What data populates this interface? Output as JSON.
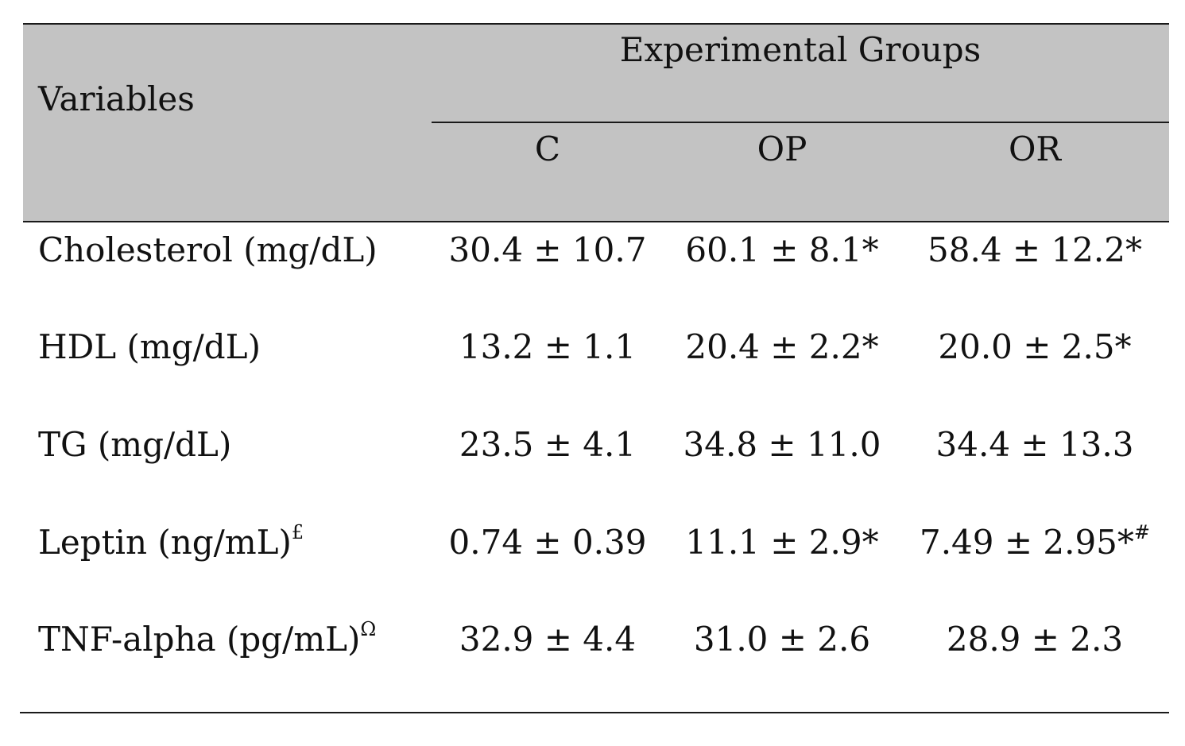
{
  "header": {
    "variables_label": "Variables",
    "group_title": "Experimental Groups",
    "columns": [
      "C",
      "OP",
      "OR"
    ]
  },
  "rows": [
    {
      "label": "Cholesterol (mg/dL)",
      "label_sup": "",
      "values": [
        {
          "text": "30.4 ± 10.7",
          "sup": ""
        },
        {
          "text": "60.1 ± 8.1*",
          "sup": ""
        },
        {
          "text": "58.4 ± 12.2*",
          "sup": ""
        }
      ]
    },
    {
      "label": "HDL (mg/dL)",
      "label_sup": "",
      "values": [
        {
          "text": "13.2 ± 1.1",
          "sup": ""
        },
        {
          "text": "20.4 ± 2.2*",
          "sup": ""
        },
        {
          "text": "20.0 ± 2.5*",
          "sup": ""
        }
      ]
    },
    {
      "label": "TG (mg/dL)",
      "label_sup": "",
      "values": [
        {
          "text": "23.5 ± 4.1",
          "sup": ""
        },
        {
          "text": "34.8 ± 11.0",
          "sup": ""
        },
        {
          "text": "34.4 ± 13.3",
          "sup": ""
        }
      ]
    },
    {
      "label": "Leptin (ng/mL)",
      "label_sup": "£",
      "values": [
        {
          "text": "0.74 ± 0.39",
          "sup": ""
        },
        {
          "text": "11.1 ± 2.9*",
          "sup": ""
        },
        {
          "text": "7.49 ± 2.95*",
          "sup": "#"
        }
      ]
    },
    {
      "label": "TNF-alpha (pg/mL)",
      "label_sup": "Ω",
      "values": [
        {
          "text": "32.9 ± 4.4",
          "sup": ""
        },
        {
          "text": "31.0 ± 2.6",
          "sup": ""
        },
        {
          "text": "28.9 ± 2.3",
          "sup": ""
        }
      ]
    }
  ]
}
